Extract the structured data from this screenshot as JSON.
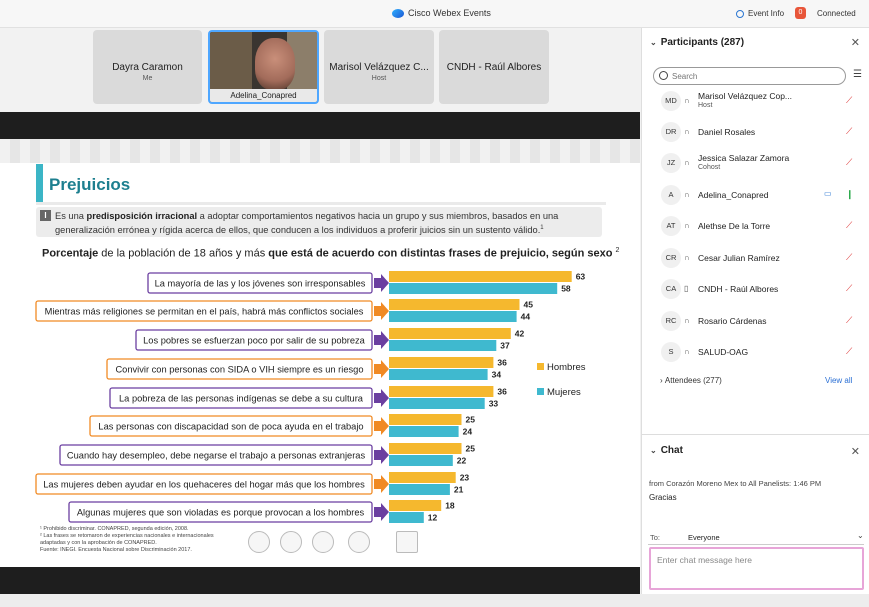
{
  "titlebar": {
    "app_title": "Cisco Webex Events",
    "event_info": "Event Info",
    "recording_badge": "0",
    "status": "Connected"
  },
  "video_strip": {
    "tiles": [
      {
        "name": "Dayra Caramon",
        "role": "Me"
      },
      {
        "name": "Adelina_Conapred",
        "role": ""
      },
      {
        "name": "Marisol Velázquez C...",
        "role": "Host"
      },
      {
        "name": "CNDH - Raúl Albores",
        "role": ""
      }
    ]
  },
  "slide": {
    "title": "Prejuicios",
    "definition_icon": "I",
    "definition_pre": "Es una ",
    "definition_bold": "predisposición irracional",
    "definition_post": " a adoptar comportamientos negativos hacia un grupo y sus miembros, basados en una generalización errónea y rígida acerca de ellos, que conducen a los individuos a proferir juicios sin un sustento válido.",
    "definition_sup": "1",
    "heading_bold1": "Porcentaje",
    "heading_mid": " de la población de 18 años y más ",
    "heading_bold2": "que está de acuerdo con distintas frases de prejuicio, según sexo",
    "heading_sup": "2",
    "footnotes": [
      "¹ Prohibido discriminar. CONAPRED, segunda edición, 2008.",
      "² Las frases se retomaron de experiencias nacionales e internacionales",
      "adaptadas y con la aprobación de CONAPRED.",
      "Fuente: INEGI. Encuesta Nacional sobre Discriminación 2017."
    ]
  },
  "chart_data": {
    "type": "bar",
    "orientation": "horizontal",
    "title": "Porcentaje de la población de 18 años y más que está de acuerdo con distintas frases de prejuicio, según sexo",
    "categories": [
      "La mayoría de las y los jóvenes son irresponsables",
      "Mientras más religiones se permitan en el país, habrá más conflictos sociales",
      "Los pobres se esfuerzan poco por salir de su pobreza",
      "Convivir con personas con SIDA o VIH siempre es un riesgo",
      "La pobreza de las personas indígenas se debe a su cultura",
      "Las personas con discapacidad son de poca ayuda en el trabajo",
      "Cuando hay desempleo, debe negarse el trabajo a personas extranjeras",
      "Las mujeres deben ayudar en los quehaceres del hogar más que los hombres",
      "Algunas mujeres que son violadas es porque provocan a los hombres"
    ],
    "series": [
      {
        "name": "Hombres",
        "color": "#f5b82e",
        "values": [
          63,
          45,
          42,
          36,
          36,
          25,
          25,
          23,
          18
        ]
      },
      {
        "name": "Mujeres",
        "color": "#3fb9cf",
        "values": [
          58,
          44,
          37,
          34,
          33,
          24,
          22,
          21,
          12
        ]
      }
    ],
    "arrow_colors": [
      "#6b3fa0",
      "#f08a24",
      "#6b3fa0",
      "#f08a24",
      "#6b3fa0",
      "#f08a24",
      "#6b3fa0",
      "#f08a24",
      "#6b3fa0"
    ],
    "legend_position": "right"
  },
  "participants": {
    "header": "Participants (287)",
    "search_placeholder": "Search",
    "list": [
      {
        "initials": "MD",
        "name": "Marisol Velázquez Cop...",
        "role": "Host",
        "device": "headset",
        "mic": "muted"
      },
      {
        "initials": "DR",
        "name": "Daniel Rosales",
        "role": "",
        "device": "headset",
        "mic": "muted"
      },
      {
        "initials": "JZ",
        "name": "Jessica Salazar Zamora",
        "role": "Cohost",
        "device": "headset",
        "mic": "muted"
      },
      {
        "initials": "A",
        "name": "Adelina_Conapred",
        "role": "",
        "device": "headset",
        "mic": "on",
        "camera": "on"
      },
      {
        "initials": "AT",
        "name": "Alethse De la Torre",
        "role": "",
        "device": "headset",
        "mic": "muted"
      },
      {
        "initials": "CR",
        "name": "Cesar Julian Ramírez",
        "role": "",
        "device": "headset",
        "mic": "muted"
      },
      {
        "initials": "CA",
        "name": "CNDH - Raúl Albores",
        "role": "",
        "device": "phone",
        "mic": "muted"
      },
      {
        "initials": "RC",
        "name": "Rosario Cárdenas",
        "role": "",
        "device": "headset",
        "mic": "muted"
      },
      {
        "initials": "S",
        "name": "SALUD-OAG",
        "role": "",
        "device": "headset",
        "mic": "muted"
      }
    ],
    "attendees": "Attendees (277)",
    "view_all": "View all"
  },
  "chat": {
    "header": "Chat",
    "meta": "from Corazón Moreno Mex to All Panelists:   1:46  PM",
    "message": "Gracias",
    "to_label": "To:",
    "to_value": "Everyone",
    "input_placeholder": "Enter chat message here"
  }
}
